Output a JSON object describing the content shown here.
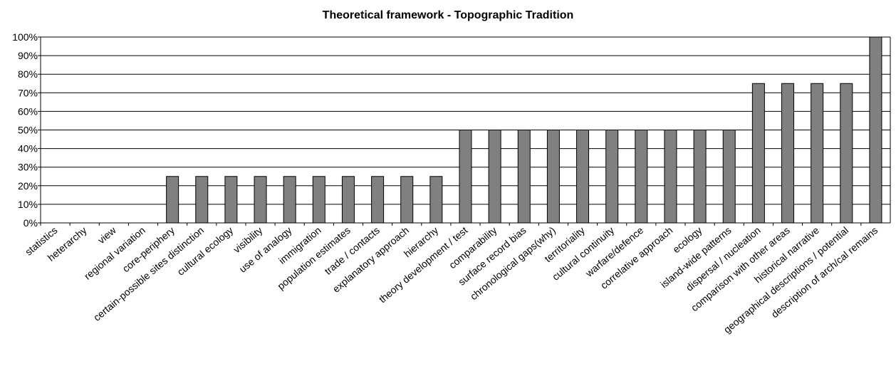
{
  "chart_data": {
    "type": "bar",
    "title": "Theoretical framework - Topographic Tradition",
    "categories": [
      "statistics",
      "heterarchy",
      "view",
      "regional variation",
      "core-periphery",
      "certain-possible sites distinction",
      "cultural ecology",
      "visibility",
      "use of analogy",
      "immigration",
      "population estimates",
      "trade / contacts",
      "explanatory approach",
      "hierarchy",
      "theory development / test",
      "comparability",
      "surface record bias",
      "chronological gaps(why)",
      "territoriality",
      "cultural continuity",
      "warfare/defence",
      "correlative approach",
      "ecology",
      "island-wide patterns",
      "dispersal / nucleation",
      "comparison with other areas",
      "historical narrative",
      "geographical descriptions / potential",
      "description of arch/cal remains"
    ],
    "values": [
      0,
      0,
      0,
      0,
      25,
      25,
      25,
      25,
      25,
      25,
      25,
      25,
      25,
      25,
      50,
      50,
      50,
      50,
      50,
      50,
      50,
      50,
      50,
      50,
      75,
      75,
      75,
      75,
      100
    ],
    "color": "#808080",
    "ylim": [
      0,
      100
    ],
    "yticks": [
      {
        "value": 0,
        "label": "0%"
      },
      {
        "value": 10,
        "label": "10%"
      },
      {
        "value": 20,
        "label": "20%"
      },
      {
        "value": 30,
        "label": "30%"
      },
      {
        "value": 40,
        "label": "40%"
      },
      {
        "value": 50,
        "label": "50%"
      },
      {
        "value": 60,
        "label": "60%"
      },
      {
        "value": 70,
        "label": "70%"
      },
      {
        "value": 80,
        "label": "80%"
      },
      {
        "value": 90,
        "label": "90%"
      },
      {
        "value": 100,
        "label": "100%"
      }
    ],
    "grid": true
  }
}
